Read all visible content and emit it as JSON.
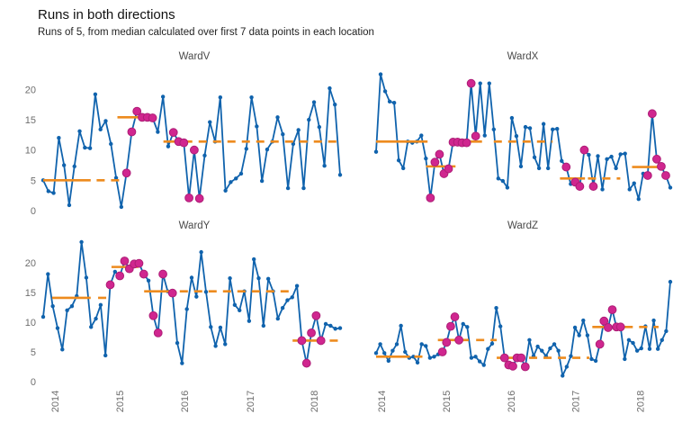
{
  "chart_data": {
    "type": "line",
    "title": "Runs in both directions",
    "subtitle": "Runs of 5, from median calculated over first 7 data points in each location",
    "legend": "none",
    "grid": "off",
    "y_ticks": [
      0,
      5,
      10,
      15,
      20
    ],
    "x_ticks": [
      "2014",
      "2015",
      "2016",
      "2017",
      "2018"
    ],
    "ylim": [
      0,
      24
    ],
    "colors": {
      "line": "#1063ad",
      "signal": "#d0268f",
      "signal_edge": "#ad1d76",
      "median": "#ed8b1e",
      "axis_text": "#6e6e6e",
      "facet_text": "#4a4a4a",
      "title_text": "#111111"
    },
    "panels": [
      {
        "name": "WardV",
        "values": [
          5.0,
          3.2,
          2.9,
          12.0,
          7.5,
          0.9,
          7.3,
          13.1,
          10.4,
          10.3,
          19.2,
          13.4,
          14.8,
          11.0,
          5.4,
          0.6,
          6.2,
          13.0,
          16.4,
          15.4,
          15.4,
          15.3,
          13.0,
          18.8,
          10.6,
          12.9,
          11.4,
          11.2,
          2.1,
          10.0,
          2.0,
          9.1,
          14.6,
          11.4,
          18.7,
          3.3,
          4.7,
          5.3,
          6.1,
          10.2,
          18.7,
          13.9,
          4.9,
          10.1,
          11.4,
          15.4,
          12.6,
          3.7,
          11.0,
          13.3,
          3.7,
          15.0,
          17.9,
          13.8,
          7.4,
          20.2,
          17.5,
          5.9
        ],
        "signals": [
          16,
          17,
          18,
          19,
          20,
          21,
          25,
          26,
          27,
          28,
          29,
          30
        ],
        "medians": [
          {
            "value": 5.0,
            "solid": [
              0,
              0.16
            ],
            "dash": [
              0.18,
              0.265
            ]
          },
          {
            "value": 15.4,
            "solid": [
              0.25,
              0.345
            ],
            "dash": [
              0.355,
              0.39
            ]
          },
          {
            "value": 11.4,
            "solid": [
              0.405,
              0.455
            ],
            "dash": [
              0.475,
              1.0
            ]
          }
        ]
      },
      {
        "name": "WardX",
        "values": [
          9.7,
          22.5,
          19.7,
          18.0,
          17.8,
          8.3,
          7.0,
          11.4,
          11.2,
          11.4,
          12.4,
          8.6,
          2.1,
          8.0,
          9.3,
          6.1,
          6.9,
          11.3,
          11.3,
          11.2,
          11.2,
          21.0,
          12.3,
          21.0,
          12.4,
          21.0,
          13.4,
          5.3,
          4.9,
          3.8,
          15.3,
          12.3,
          7.3,
          13.8,
          13.6,
          8.8,
          7.0,
          14.3,
          7.0,
          13.4,
          13.5,
          8.2,
          7.2,
          4.4,
          4.7,
          4.0,
          10.0,
          9.2,
          4.0,
          9.0,
          3.5,
          8.5,
          8.9,
          7.0,
          9.3,
          9.4,
          3.5,
          4.5,
          1.9,
          6.1,
          5.8,
          16.0,
          8.5,
          7.3,
          5.8,
          3.8
        ],
        "signals": [
          12,
          13,
          14,
          15,
          16,
          17,
          18,
          19,
          20,
          21,
          22,
          42,
          44,
          45,
          46,
          48,
          60,
          61,
          62,
          63,
          64
        ],
        "medians": [
          {
            "value": 11.4,
            "solid": [
              0,
              0.175
            ]
          },
          {
            "value": 7.3,
            "solid": [
              0.17,
              0.27
            ]
          },
          {
            "value": 11.4,
            "solid": [
              0.26,
              0.36
            ],
            "dash": [
              0.4,
              0.6
            ]
          },
          {
            "value": 5.3,
            "solid": [
              0.625,
              0.71
            ],
            "dash": [
              0.72,
              0.83
            ]
          },
          {
            "value": 7.2,
            "solid": [
              0.87,
              0.96
            ]
          }
        ]
      },
      {
        "name": "WardY",
        "values": [
          10.9,
          18.1,
          12.7,
          9.0,
          5.4,
          12.0,
          12.7,
          14.4,
          23.5,
          17.5,
          9.2,
          10.6,
          12.9,
          4.4,
          16.3,
          18.5,
          17.8,
          20.3,
          19.0,
          19.8,
          19.9,
          18.1,
          17.0,
          11.1,
          8.2,
          18.1,
          15.2,
          14.9,
          6.5,
          3.1,
          12.2,
          17.5,
          14.3,
          21.8,
          15.1,
          9.2,
          6.0,
          9.1,
          6.3,
          17.4,
          12.9,
          12.0,
          15.2,
          10.2,
          20.6,
          17.4,
          9.4,
          17.3,
          15.2,
          10.6,
          12.4,
          13.7,
          14.2,
          16.1,
          6.9,
          3.1,
          8.2,
          11.1,
          6.9,
          9.7,
          9.4,
          8.9,
          9.0
        ],
        "signals": [
          14,
          16,
          17,
          18,
          19,
          20,
          21,
          23,
          24,
          25,
          27,
          54,
          55,
          56,
          57,
          58
        ],
        "medians": [
          {
            "value": 14.1,
            "solid": [
              0.03,
              0.16
            ],
            "dash": [
              0.185,
              0.215
            ]
          },
          {
            "value": 19.3,
            "solid": [
              0.23,
              0.32
            ]
          },
          {
            "value": 15.2,
            "solid": [
              0.34,
              0.44
            ],
            "dash": [
              0.46,
              0.83
            ]
          },
          {
            "value": 6.9,
            "solid": [
              0.84,
              0.94
            ],
            "dash": [
              0.965,
              1.0
            ]
          }
        ]
      },
      {
        "name": "WardZ",
        "values": [
          4.8,
          6.3,
          4.8,
          3.5,
          5.2,
          6.3,
          9.4,
          5.0,
          4.0,
          4.2,
          3.2,
          6.3,
          6.0,
          4.0,
          4.2,
          4.6,
          5.0,
          6.6,
          9.3,
          10.9,
          7.0,
          9.7,
          9.2,
          4.0,
          4.2,
          3.4,
          2.8,
          5.5,
          6.4,
          12.4,
          9.3,
          4.0,
          2.8,
          2.6,
          4.0,
          4.0,
          2.5,
          7.0,
          4.3,
          5.9,
          5.2,
          4.3,
          5.6,
          6.3,
          5.2,
          1.0,
          2.5,
          4.3,
          9.1,
          7.8,
          10.3,
          7.8,
          3.8,
          3.5,
          6.3,
          10.2,
          9.1,
          12.1,
          9.2,
          9.2,
          3.8,
          7.0,
          6.5,
          5.2,
          5.6,
          9.3,
          5.5,
          10.3,
          5.5,
          7.0,
          8.5,
          16.8
        ],
        "signals": [
          16,
          17,
          18,
          19,
          20,
          31,
          32,
          33,
          34,
          35,
          36,
          54,
          55,
          56,
          57,
          58,
          59
        ],
        "medians": [
          {
            "value": 4.2,
            "solid": [
              0,
              0.115
            ],
            "dash": [
              0.13,
              0.175
            ]
          },
          {
            "value": 7.0,
            "solid": [
              0.21,
              0.315
            ],
            "dash": [
              0.34,
              0.41
            ]
          },
          {
            "value": 4.0,
            "solid": [
              0.41,
              0.485
            ],
            "dash": [
              0.52,
              0.725
            ]
          },
          {
            "value": 9.2,
            "solid": [
              0.735,
              0.82
            ],
            "dash": [
              0.845,
              0.96
            ]
          }
        ]
      }
    ]
  }
}
